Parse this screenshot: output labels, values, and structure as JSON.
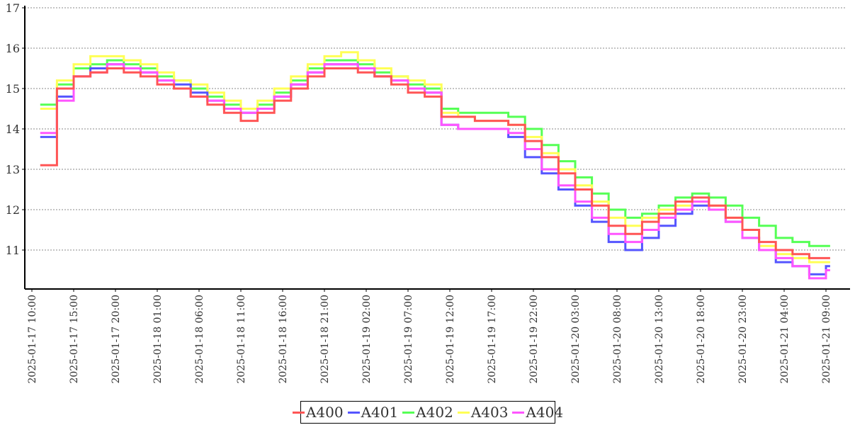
{
  "chart_data": {
    "type": "line",
    "style": "step",
    "title": "",
    "xlabel": "",
    "ylabel": "",
    "ylim": [
      10,
      17
    ],
    "yticks": [
      11,
      12,
      13,
      14,
      15,
      16,
      17
    ],
    "grid": "horizontal-dotted",
    "legend_position": "bottom-center",
    "x_start": "2025-01-17 11:00",
    "x_interval_hours": 2,
    "x_origin": "2025-01-17 10:00",
    "xtick_labels": [
      "2025-01-17 10:00",
      "2025-01-17 15:00",
      "2025-01-17 20:00",
      "2025-01-18 01:00",
      "2025-01-18 06:00",
      "2025-01-18 11:00",
      "2025-01-18 16:00",
      "2025-01-18 21:00",
      "2025-01-19 02:00",
      "2025-01-19 07:00",
      "2025-01-19 12:00",
      "2025-01-19 17:00",
      "2025-01-19 22:00",
      "2025-01-20 03:00",
      "2025-01-20 08:00",
      "2025-01-20 13:00",
      "2025-01-20 18:00",
      "2025-01-20 23:00",
      "2025-01-21 04:00",
      "2025-01-21 09:00"
    ],
    "xtick_step_hours": 5,
    "series": [
      {
        "name": "A402",
        "color": "#55ff55",
        "values": [
          14.6,
          15.1,
          15.5,
          15.6,
          15.7,
          15.6,
          15.5,
          15.3,
          15.2,
          15.0,
          14.8,
          14.6,
          14.5,
          14.6,
          14.9,
          15.2,
          15.5,
          15.7,
          15.7,
          15.6,
          15.4,
          15.3,
          15.1,
          15.0,
          14.5,
          14.4,
          14.4,
          14.4,
          14.3,
          14.0,
          13.6,
          13.2,
          12.8,
          12.4,
          12.0,
          11.8,
          11.9,
          12.1,
          12.3,
          12.4,
          12.3,
          12.1,
          11.8,
          11.6,
          11.3,
          11.2,
          11.1,
          11.1
        ]
      },
      {
        "name": "A403",
        "color": "#ffff55",
        "values": [
          14.5,
          15.2,
          15.6,
          15.8,
          15.8,
          15.7,
          15.6,
          15.4,
          15.2,
          15.1,
          14.9,
          14.7,
          14.5,
          14.7,
          15.0,
          15.3,
          15.6,
          15.8,
          15.9,
          15.7,
          15.5,
          15.3,
          15.2,
          15.1,
          14.4,
          14.3,
          14.2,
          14.2,
          14.1,
          13.8,
          13.4,
          13.0,
          12.6,
          12.2,
          11.8,
          11.6,
          11.8,
          12.0,
          12.1,
          12.2,
          12.1,
          11.8,
          11.5,
          11.1,
          10.9,
          10.8,
          10.7,
          10.7
        ]
      },
      {
        "name": "A401",
        "color": "#5555ff",
        "values": [
          13.8,
          14.8,
          15.3,
          15.5,
          15.6,
          15.5,
          15.4,
          15.2,
          15.1,
          14.9,
          14.7,
          14.5,
          14.4,
          14.5,
          14.8,
          15.1,
          15.4,
          15.6,
          15.6,
          15.5,
          15.3,
          15.2,
          15.0,
          14.9,
          14.1,
          14.0,
          14.0,
          14.0,
          13.8,
          13.3,
          12.9,
          12.5,
          12.1,
          11.7,
          11.2,
          11.0,
          11.3,
          11.6,
          11.9,
          12.1,
          12.0,
          11.7,
          11.3,
          11.0,
          10.7,
          10.6,
          10.4,
          10.6
        ]
      },
      {
        "name": "A404",
        "color": "#ff55ff",
        "values": [
          13.9,
          14.7,
          15.3,
          15.4,
          15.6,
          15.5,
          15.4,
          15.2,
          15.0,
          14.8,
          14.7,
          14.5,
          14.4,
          14.5,
          14.8,
          15.1,
          15.4,
          15.6,
          15.6,
          15.5,
          15.3,
          15.2,
          15.0,
          14.9,
          14.1,
          14.0,
          14.0,
          14.0,
          13.9,
          13.5,
          13.0,
          12.6,
          12.2,
          11.8,
          11.4,
          11.2,
          11.5,
          11.8,
          12.0,
          12.2,
          12.0,
          11.7,
          11.3,
          11.0,
          10.8,
          10.6,
          10.3,
          10.5
        ]
      },
      {
        "name": "A400",
        "color": "#ff5555",
        "values": [
          13.1,
          15.0,
          15.3,
          15.4,
          15.5,
          15.4,
          15.3,
          15.1,
          15.0,
          14.8,
          14.6,
          14.4,
          14.2,
          14.4,
          14.7,
          15.0,
          15.3,
          15.5,
          15.5,
          15.4,
          15.3,
          15.1,
          14.9,
          14.8,
          14.3,
          14.3,
          14.2,
          14.2,
          14.1,
          13.7,
          13.3,
          12.9,
          12.5,
          12.1,
          11.6,
          11.4,
          11.7,
          11.9,
          12.2,
          12.3,
          12.1,
          11.8,
          11.5,
          11.2,
          11.0,
          10.9,
          10.8,
          10.8
        ]
      }
    ],
    "legend_order": [
      "A400",
      "A401",
      "A402",
      "A403",
      "A404"
    ]
  }
}
